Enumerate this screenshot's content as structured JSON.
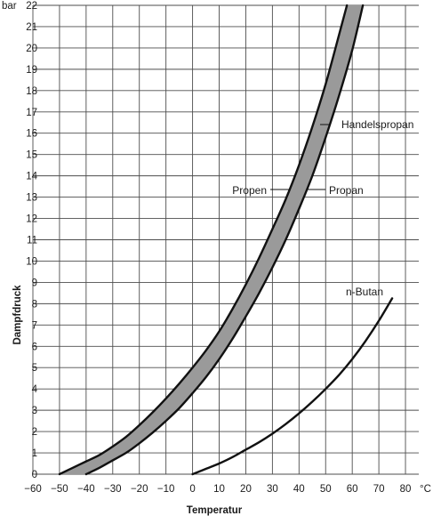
{
  "chart_data": {
    "type": "line",
    "title": "",
    "xlabel": "Temperatur",
    "ylabel": "Dampfdruck",
    "x_unit": "°C",
    "y_unit": "bar",
    "xlim": [
      -60,
      85
    ],
    "ylim": [
      0,
      22
    ],
    "x_ticks": [
      -60,
      -50,
      -40,
      -30,
      -20,
      -10,
      0,
      10,
      20,
      30,
      40,
      50,
      60,
      70,
      80
    ],
    "x_tick_labels": [
      "−60",
      "−50",
      "−40",
      "−30",
      "−20",
      "−10",
      "0",
      "10",
      "20",
      "30",
      "40",
      "50",
      "60",
      "70",
      "80"
    ],
    "y_ticks": [
      0,
      1,
      2,
      3,
      4,
      5,
      6,
      7,
      8,
      9,
      10,
      11,
      12,
      13,
      14,
      15,
      16,
      17,
      18,
      19,
      20,
      21,
      22
    ],
    "grid": true,
    "band": {
      "name": "Handelspropan",
      "fill": "#9a9a9a",
      "upper": "Propen",
      "lower": "Propan"
    },
    "series": [
      {
        "name": "Propen",
        "x": [
          -50,
          -45,
          -40,
          -35,
          -30,
          -25,
          -20,
          -15,
          -10,
          -5,
          0,
          5,
          10,
          15,
          20,
          25,
          30,
          35,
          40,
          45,
          50,
          55,
          58
        ],
        "y": [
          0,
          0.3,
          0.6,
          0.9,
          1.3,
          1.75,
          2.3,
          2.9,
          3.55,
          4.25,
          5.0,
          5.8,
          6.7,
          7.75,
          8.9,
          10.15,
          11.5,
          12.9,
          14.5,
          16.3,
          18.3,
          20.6,
          22.0
        ]
      },
      {
        "name": "Propan",
        "x": [
          -40,
          -35,
          -30,
          -25,
          -20,
          -15,
          -10,
          -5,
          0,
          5,
          10,
          15,
          20,
          25,
          30,
          35,
          40,
          45,
          50,
          55,
          60,
          64
        ],
        "y": [
          0,
          0.3,
          0.65,
          1.0,
          1.45,
          1.95,
          2.5,
          3.1,
          3.8,
          4.55,
          5.4,
          6.35,
          7.4,
          8.5,
          9.7,
          11.0,
          12.45,
          14.0,
          15.8,
          17.75,
          19.9,
          22.0
        ]
      },
      {
        "name": "n-Butan",
        "x": [
          0,
          5,
          10,
          15,
          20,
          25,
          30,
          35,
          40,
          45,
          50,
          55,
          60,
          65,
          70,
          75
        ],
        "y": [
          0,
          0.25,
          0.5,
          0.8,
          1.15,
          1.5,
          1.9,
          2.35,
          2.85,
          3.4,
          4.0,
          4.65,
          5.4,
          6.25,
          7.2,
          8.25
        ]
      }
    ],
    "annotations": [
      {
        "text": "Handelspropan",
        "x": 43,
        "y": 16.3
      },
      {
        "text": "Propen",
        "x": 33.5,
        "y": 13.3
      },
      {
        "text": "Propan",
        "x": 42,
        "y": 13.3
      },
      {
        "text": "n-Butan",
        "x": 74.5,
        "y": 8.1
      }
    ]
  }
}
